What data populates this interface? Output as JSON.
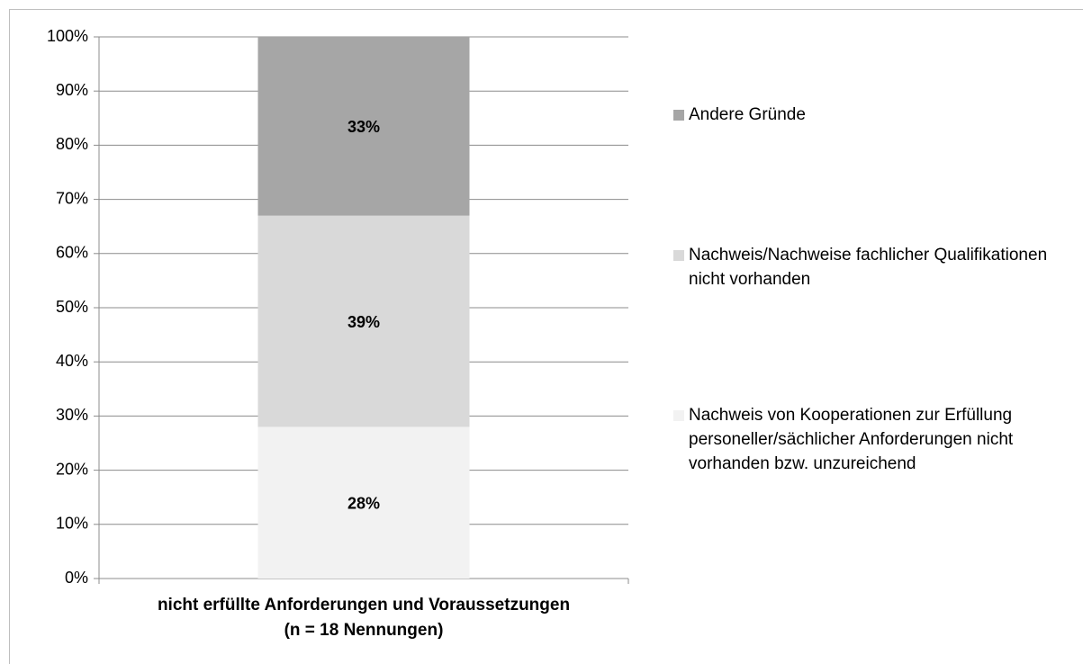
{
  "chart_data": {
    "type": "stacked_bar",
    "categories": [
      "nicht erfüllte Anforderungen und Voraussetzungen\n(n = 18 Nennungen)"
    ],
    "series": [
      {
        "name": "Nachweis von Kooperationen zur Erfüllung personeller/sächlicher Anforderungen nicht vorhanden bzw. unzureichend",
        "color": "#f2f2f2",
        "values": [
          28
        ],
        "value_labels": [
          "28%"
        ]
      },
      {
        "name": "Nachweis/Nachweise fachlicher Qualifikationen nicht vorhanden",
        "color": "#d9d9d9",
        "values": [
          39
        ],
        "value_labels": [
          "39%"
        ]
      },
      {
        "name": "Andere Gründe",
        "color": "#a6a6a6",
        "values": [
          33
        ],
        "value_labels": [
          "33%"
        ]
      }
    ],
    "ylim": [
      0,
      100
    ],
    "yticks": [
      {
        "value": 0,
        "label": "0%"
      },
      {
        "value": 10,
        "label": "10%"
      },
      {
        "value": 20,
        "label": "20%"
      },
      {
        "value": 30,
        "label": "30%"
      },
      {
        "value": 40,
        "label": "40%"
      },
      {
        "value": 50,
        "label": "50%"
      },
      {
        "value": 60,
        "label": "60%"
      },
      {
        "value": 70,
        "label": "70%"
      },
      {
        "value": 80,
        "label": "80%"
      },
      {
        "value": 90,
        "label": "90%"
      },
      {
        "value": 100,
        "label": "100%"
      }
    ],
    "grid": true,
    "legend": "right"
  }
}
